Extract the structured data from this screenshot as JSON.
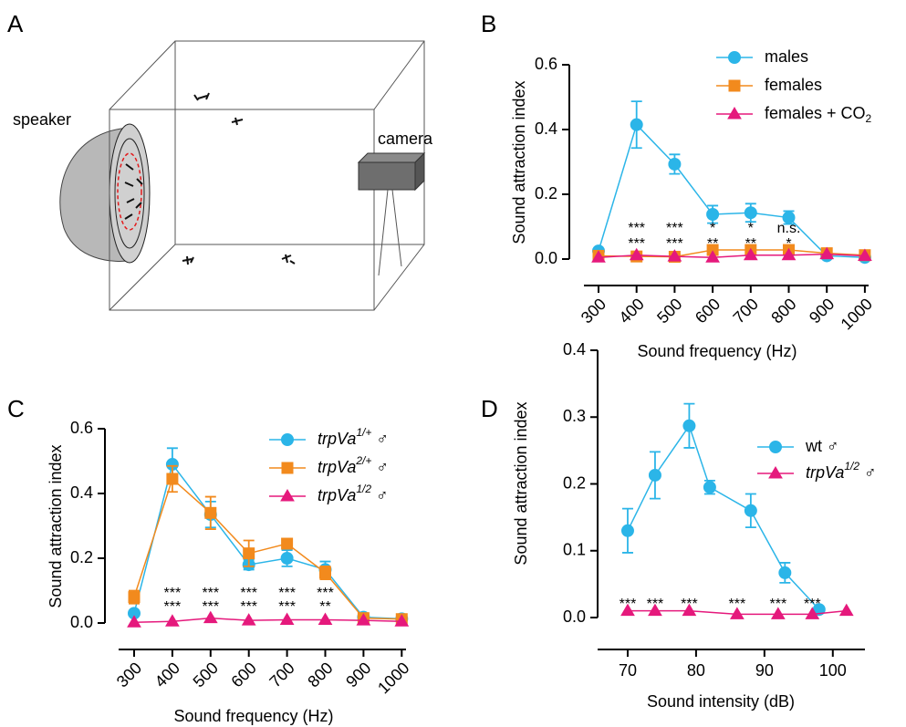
{
  "panel_labels": [
    "A",
    "B",
    "C",
    "D"
  ],
  "diagram": {
    "labels": [
      "speaker",
      "camera"
    ]
  },
  "chart_data": [
    {
      "type": "line",
      "xlabel": "Sound frequency (Hz)",
      "ylabel": "Sound attraction index",
      "categories": [
        "300",
        "400",
        "500",
        "600",
        "700",
        "800",
        "900",
        "1000"
      ],
      "ylim": [
        0,
        0.6
      ],
      "yticks": [
        {
          "value": 0,
          "label": "0.0"
        },
        {
          "value": 0.2,
          "label": "0.2"
        },
        {
          "value": 0.4,
          "label": "0.4"
        },
        {
          "value": 0.6,
          "label": "0.6"
        }
      ],
      "series": [
        {
          "name": "males",
          "color": "#2bb5e8",
          "marker": "circle",
          "values": [
            0.025,
            0.415,
            0.293,
            0.138,
            0.143,
            0.128,
            0.01,
            0.005
          ],
          "errors": [
            0.005,
            0.072,
            0.03,
            0.027,
            0.028,
            0.02,
            0.005,
            0.003
          ]
        },
        {
          "name": "females",
          "color": "#f28a1d",
          "marker": "square",
          "values": [
            0.01,
            0.008,
            0.007,
            0.028,
            0.028,
            0.028,
            0.018,
            0.012
          ],
          "significance": [
            null,
            "***",
            "***",
            "*",
            "*",
            "n.s.",
            null,
            null
          ]
        },
        {
          "name": "females + CO",
          "name_sub": "2",
          "color": "#e5197c",
          "marker": "triangle",
          "values": [
            0.005,
            0.012,
            0.008,
            0.005,
            0.012,
            0.012,
            0.015,
            0.01
          ],
          "significance": [
            null,
            "***",
            "***",
            "**",
            "**",
            "*",
            null,
            null
          ]
        }
      ]
    },
    {
      "type": "line",
      "xlabel": "Sound frequency (Hz)",
      "ylabel": "Sound attraction index",
      "categories": [
        "300",
        "400",
        "500",
        "600",
        "700",
        "800",
        "900",
        "1000"
      ],
      "ylim": [
        0,
        0.6
      ],
      "yticks": [
        {
          "value": 0,
          "label": "0.0"
        },
        {
          "value": 0.2,
          "label": "0.2"
        },
        {
          "value": 0.4,
          "label": "0.4"
        },
        {
          "value": 0.6,
          "label": "0.6"
        }
      ],
      "series": [
        {
          "name": "trpVa",
          "name_sup": "1/+",
          "name_suffix": "♂",
          "name_italic": true,
          "color": "#2bb5e8",
          "marker": "circle",
          "values": [
            0.03,
            0.49,
            0.335,
            0.18,
            0.2,
            0.165,
            0.018,
            0.013
          ],
          "errors": [
            0.005,
            0.05,
            0.04,
            0.015,
            0.025,
            0.025,
            0.003,
            0.003
          ],
          "significance": [
            null,
            "***",
            "***",
            "***",
            "***",
            "***",
            null,
            null
          ]
        },
        {
          "name": "trpVa",
          "name_sup": "2/+",
          "name_suffix": "♂",
          "name_italic": true,
          "color": "#f28a1d",
          "marker": "square",
          "values": [
            0.08,
            0.445,
            0.34,
            0.215,
            0.245,
            0.155,
            0.015,
            0.012
          ],
          "errors": [
            0.02,
            0.04,
            0.05,
            0.04,
            0.01,
            0.02,
            0.003,
            0.003
          ],
          "significance": [
            null,
            "***",
            "***",
            "***",
            "***",
            "**",
            null,
            null
          ]
        },
        {
          "name": "trpVa",
          "name_sup": "1/2",
          "name_suffix": "♂",
          "name_italic": true,
          "color": "#e5197c",
          "marker": "triangle",
          "values": [
            0.002,
            0.005,
            0.015,
            0.008,
            0.01,
            0.01,
            0.008,
            0.005
          ]
        }
      ]
    },
    {
      "type": "line",
      "xlabel": "Sound intensity (dB)",
      "ylabel": "Sound attraction index",
      "xlim": [
        65.6,
        104.7
      ],
      "xticks": [
        70,
        80,
        90,
        100
      ],
      "ylim": [
        0,
        0.4
      ],
      "yticks": [
        {
          "value": 0,
          "label": "0.0"
        },
        {
          "value": 0.1,
          "label": "0.1"
        },
        {
          "value": 0.2,
          "label": "0.2"
        },
        {
          "value": 0.3,
          "label": "0.3"
        },
        {
          "value": 0.4,
          "label": "0.4"
        }
      ],
      "series": [
        {
          "name": "wt",
          "name_suffix": "♂",
          "color": "#2bb5e8",
          "marker": "circle",
          "x": [
            70,
            74,
            79,
            82,
            88,
            93,
            98
          ],
          "values": [
            0.13,
            0.213,
            0.287,
            0.195,
            0.16,
            0.067,
            0.012
          ],
          "errors": [
            0.033,
            0.035,
            0.033,
            0.01,
            0.025,
            0.015,
            0.003
          ]
        },
        {
          "name": "trpVa",
          "name_sup": "1/2",
          "name_suffix": "♂",
          "name_italic": true,
          "color": "#e5197c",
          "marker": "triangle",
          "x": [
            70,
            74,
            79,
            86,
            92,
            97,
            102
          ],
          "values": [
            0.01,
            0.01,
            0.01,
            0.005,
            0.005,
            0.005,
            0.01
          ],
          "significance": [
            "***",
            "***",
            "***",
            "***",
            "***",
            "***",
            null
          ]
        }
      ]
    }
  ]
}
